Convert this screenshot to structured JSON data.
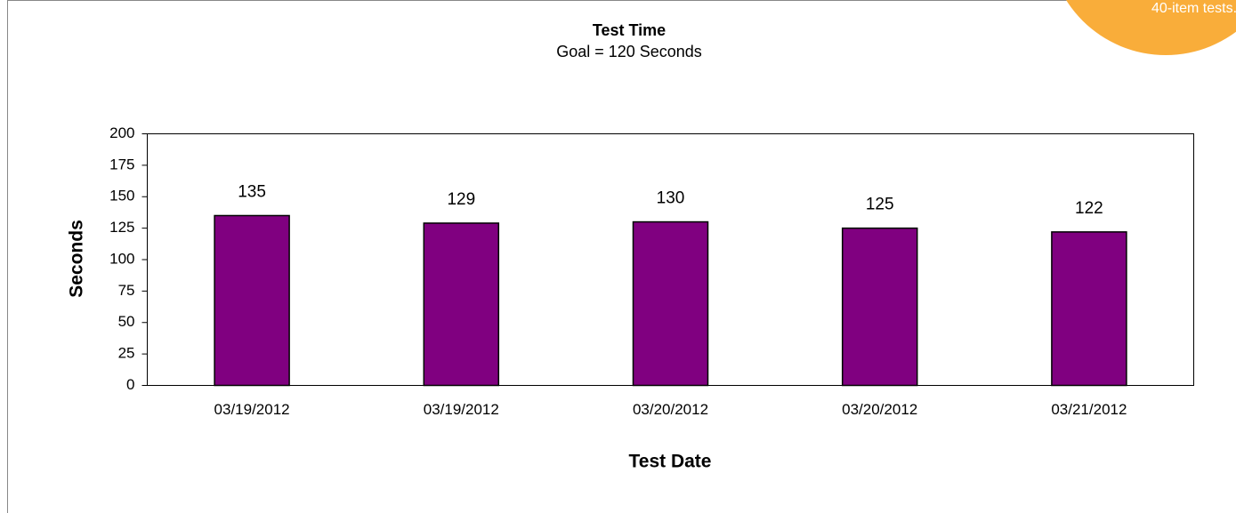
{
  "chart_data": {
    "type": "bar",
    "title": "Test Time",
    "subtitle": "Goal = 120 Seconds",
    "x_label": "Test Date",
    "y_label": "Seconds",
    "annotation": "40-item tests.",
    "categories": [
      "03/19/2012",
      "03/19/2012",
      "03/20/2012",
      "03/20/2012",
      "03/21/2012"
    ],
    "values": [
      135,
      129,
      130,
      125,
      122
    ],
    "color": "#800080",
    "ylim": [
      0,
      200
    ],
    "yticks": [
      0,
      25,
      50,
      75,
      100,
      125,
      150,
      175,
      200
    ],
    "grid": false
  }
}
